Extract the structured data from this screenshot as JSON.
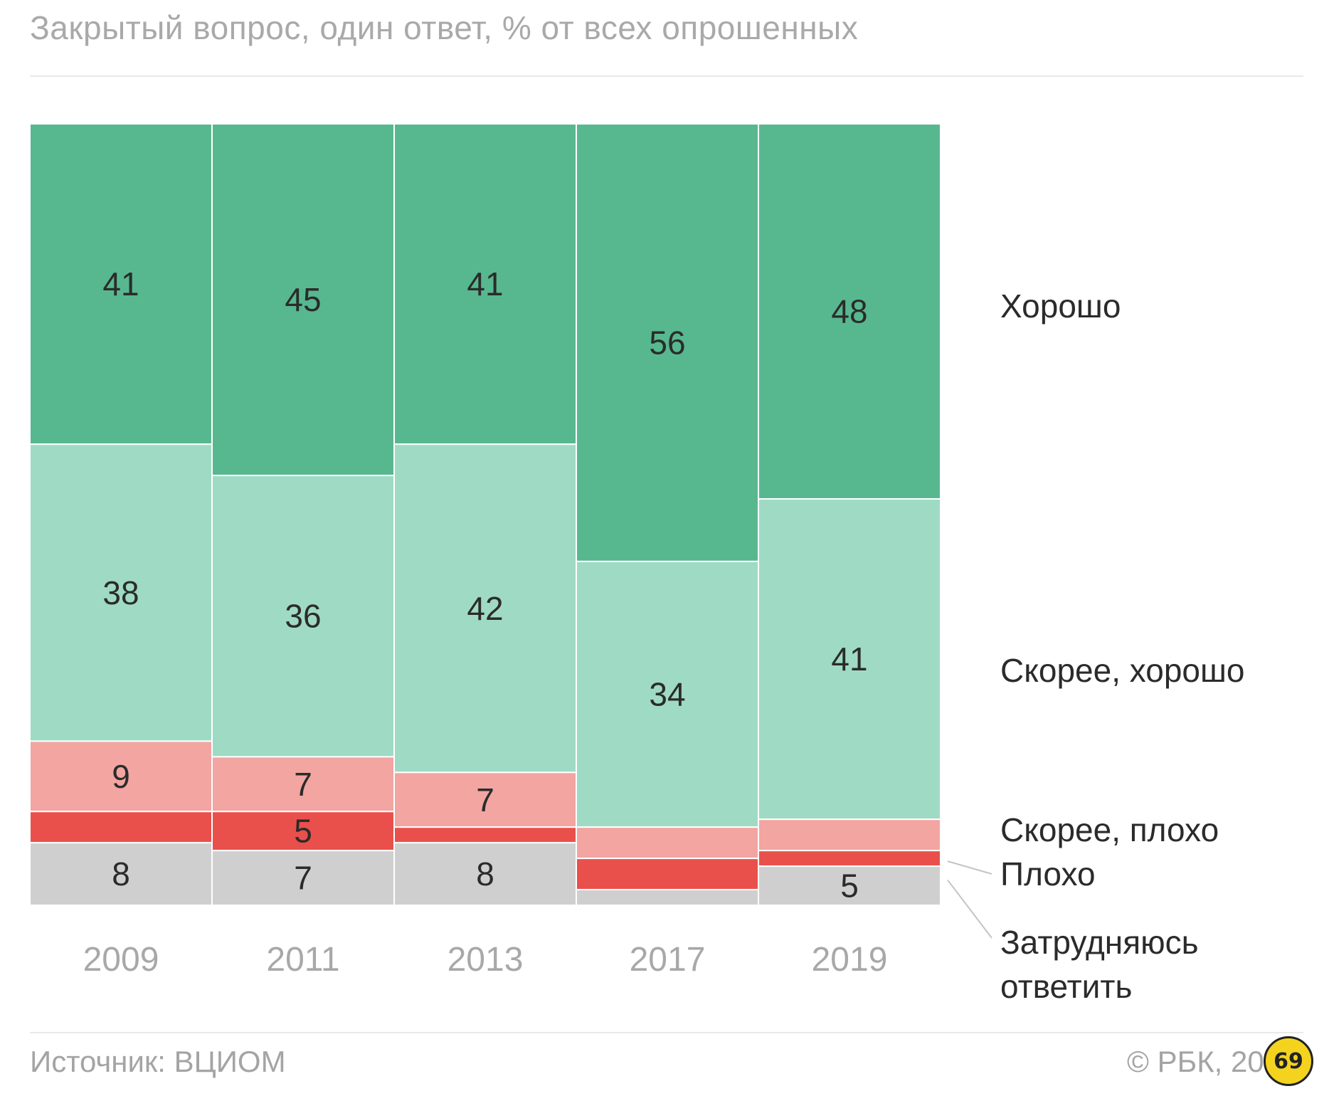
{
  "header": {
    "subtitle": "Закрытый вопрос, один ответ, % от всех опрошенных"
  },
  "footer": {
    "source": "Источник: ВЦИОМ",
    "copyright": "© РБК, 20"
  },
  "badge": {
    "text": "69"
  },
  "chart_data": {
    "type": "bar",
    "stacked": true,
    "normalized_percent": true,
    "categories": [
      "2009",
      "2011",
      "2013",
      "2017",
      "2019"
    ],
    "series": [
      {
        "name": "Хорошо",
        "color": "#57b88f",
        "values": [
          41,
          45,
          41,
          56,
          48
        ],
        "labels": [
          "41",
          "45",
          "41",
          "56",
          "48"
        ]
      },
      {
        "name": "Скорее, хорошо",
        "color": "#9fdac5",
        "values": [
          38,
          36,
          42,
          34,
          41
        ],
        "labels": [
          "38",
          "36",
          "42",
          "34",
          "41"
        ]
      },
      {
        "name": "Скорее, плохо",
        "color": "#f2a5a1",
        "values": [
          9,
          7,
          7,
          4,
          4
        ],
        "labels": [
          "9",
          "7",
          "7",
          "",
          ""
        ]
      },
      {
        "name": "Плохо",
        "color": "#e9504b",
        "values": [
          4,
          5,
          2,
          4,
          2
        ],
        "labels": [
          "",
          "5",
          "",
          "",
          ""
        ]
      },
      {
        "name": "Затрудняюсь ответить",
        "color": "#cfcfcf",
        "values": [
          8,
          7,
          8,
          2,
          5
        ],
        "labels": [
          "8",
          "7",
          "8",
          "",
          "5"
        ]
      }
    ],
    "legend_placement": "right",
    "ylim": [
      0,
      100
    ],
    "grid": false
  }
}
